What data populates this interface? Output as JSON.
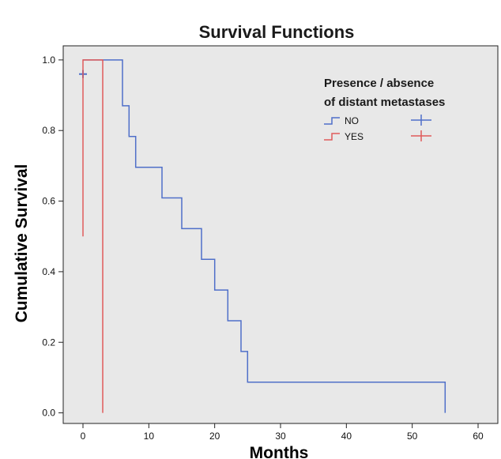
{
  "chart_data": {
    "type": "line",
    "title": "Survival Functions",
    "xlabel": "Months",
    "ylabel": "Cumulative Survival",
    "xlim": [
      -3,
      63
    ],
    "ylim": [
      -0.03,
      1.04
    ],
    "xticks": [
      0,
      10,
      20,
      30,
      40,
      50,
      60
    ],
    "yticks": [
      0.0,
      0.2,
      0.4,
      0.6,
      0.8,
      1.0
    ],
    "ytick_labels": [
      "0.0",
      "0.2",
      "0.4",
      "0.6",
      "0.8",
      "1.0"
    ],
    "grid": false,
    "plot_background": "#e8e8e8",
    "legend": {
      "title_lines": [
        "Presence / absence",
        "of distant metastases"
      ],
      "placement": "top-right"
    },
    "series": [
      {
        "name": "NO",
        "color": "#4f6fc9",
        "step_x": [
          0,
          6,
          6,
          7,
          7,
          8,
          8,
          12,
          12,
          15,
          15,
          18,
          18,
          20,
          20,
          22,
          22,
          24,
          24,
          25,
          25,
          55,
          55
        ],
        "step_y": [
          1.0,
          1.0,
          0.87,
          0.87,
          0.783,
          0.783,
          0.696,
          0.696,
          0.609,
          0.609,
          0.522,
          0.522,
          0.435,
          0.435,
          0.348,
          0.348,
          0.261,
          0.261,
          0.174,
          0.174,
          0.087,
          0.087,
          0.0
        ],
        "censored": [
          {
            "x": 0,
            "y": 0.96
          }
        ]
      },
      {
        "name": "YES",
        "color": "#e05a5a",
        "step_x": [
          0,
          0,
          3,
          3
        ],
        "step_y": [
          0.5,
          1.0,
          1.0,
          0.0
        ],
        "censored": []
      }
    ]
  }
}
